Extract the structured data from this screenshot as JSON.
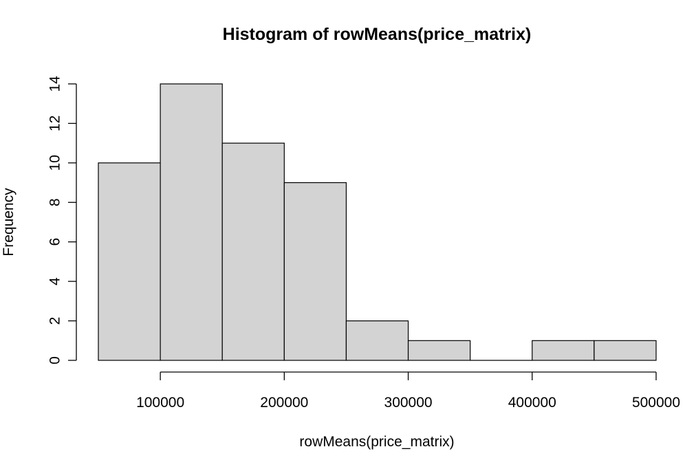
{
  "chart_data": {
    "type": "bar",
    "title": "Histogram of rowMeans(price_matrix)",
    "xlabel": "rowMeans(price_matrix)",
    "ylabel": "Frequency",
    "bins": [
      {
        "start": 50000,
        "end": 100000,
        "count": 10
      },
      {
        "start": 100000,
        "end": 150000,
        "count": 14
      },
      {
        "start": 150000,
        "end": 200000,
        "count": 11
      },
      {
        "start": 200000,
        "end": 250000,
        "count": 9
      },
      {
        "start": 250000,
        "end": 300000,
        "count": 2
      },
      {
        "start": 300000,
        "end": 350000,
        "count": 1
      },
      {
        "start": 350000,
        "end": 400000,
        "count": 0
      },
      {
        "start": 400000,
        "end": 450000,
        "count": 1
      },
      {
        "start": 450000,
        "end": 500000,
        "count": 1
      }
    ],
    "xticks": [
      100000,
      200000,
      300000,
      400000,
      500000
    ],
    "yticks": [
      0,
      2,
      4,
      6,
      8,
      10,
      12,
      14
    ],
    "xlim": [
      50000,
      500000
    ],
    "ylim": [
      0,
      14
    ],
    "bar_color": "#d3d3d3",
    "grid": false,
    "legend": "none"
  }
}
